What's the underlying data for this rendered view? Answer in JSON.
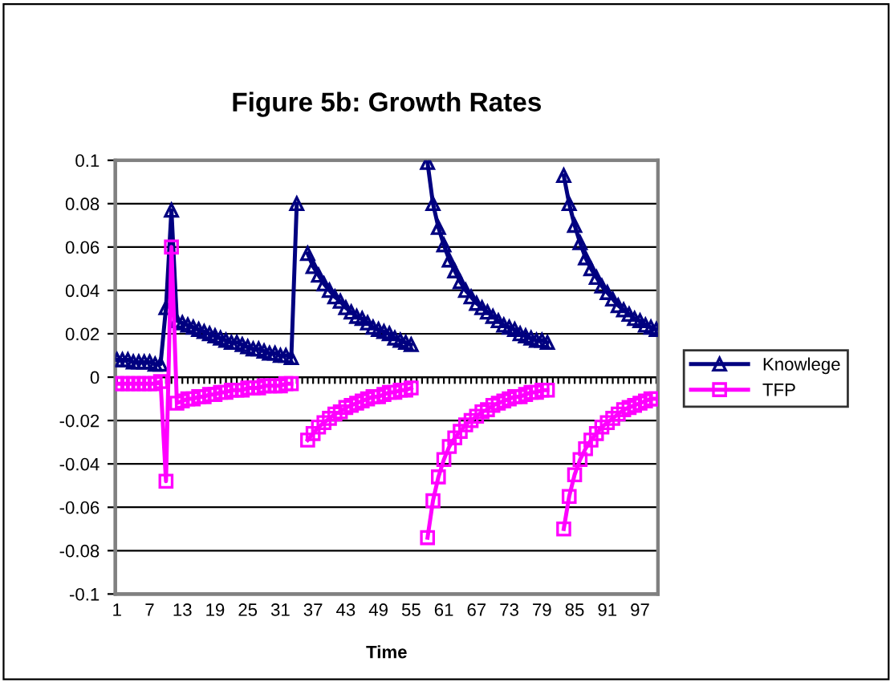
{
  "chart_data": {
    "type": "line",
    "title": "Figure 5b: Growth Rates",
    "xlabel": "Time",
    "categories": [
      "1",
      null,
      null,
      null,
      null,
      null,
      "7",
      null,
      null,
      null,
      null,
      null,
      "13",
      null,
      null,
      null,
      null,
      null,
      "19",
      null,
      null,
      null,
      null,
      null,
      "25",
      null,
      null,
      null,
      null,
      null,
      "31",
      null,
      null,
      null,
      null,
      null,
      "37",
      null,
      null,
      null,
      null,
      null,
      "43",
      null,
      null,
      null,
      null,
      null,
      "49",
      null,
      null,
      null,
      null,
      null,
      "55",
      null,
      null,
      null,
      null,
      null,
      "61",
      null,
      null,
      null,
      null,
      null,
      "67",
      null,
      null,
      null,
      null,
      null,
      "73",
      null,
      null,
      null,
      null,
      null,
      "79",
      null,
      null,
      null,
      null,
      null,
      "85",
      null,
      null,
      null,
      null,
      null,
      "91",
      null,
      null,
      null,
      null,
      null,
      "97",
      null,
      null,
      null
    ],
    "series": [
      {
        "name": "Knowlege",
        "color": "#000080",
        "marker": "triangle",
        "values": [
          0.008,
          0.008,
          0.008,
          0.007,
          0.007,
          0.007,
          0.007,
          0.006,
          0.006,
          0.032,
          0.077,
          0.026,
          0.025,
          0.024,
          0.023,
          0.022,
          0.021,
          0.02,
          0.019,
          0.018,
          0.017,
          0.016,
          0.016,
          0.015,
          0.014,
          0.013,
          0.013,
          0.012,
          0.011,
          0.011,
          0.01,
          0.01,
          0.009,
          0.08,
          null,
          0.057,
          0.051,
          0.047,
          0.043,
          0.04,
          0.037,
          0.035,
          0.032,
          0.03,
          0.028,
          0.027,
          0.025,
          0.023,
          0.022,
          0.021,
          0.02,
          0.018,
          0.017,
          0.016,
          0.015,
          null,
          null,
          0.099,
          0.08,
          0.069,
          0.061,
          0.054,
          0.049,
          0.044,
          0.04,
          0.037,
          0.034,
          0.032,
          0.03,
          0.028,
          0.026,
          0.024,
          0.023,
          0.022,
          0.02,
          0.019,
          0.018,
          0.017,
          0.017,
          0.016,
          null,
          null,
          0.093,
          0.08,
          0.07,
          0.062,
          0.055,
          0.05,
          0.046,
          0.042,
          0.039,
          0.036,
          0.033,
          0.031,
          0.029,
          0.027,
          0.026,
          0.024,
          0.023,
          0.022
        ]
      },
      {
        "name": "TFP",
        "color": "#ff00ff",
        "marker": "square",
        "values": [
          -0.003,
          -0.003,
          -0.003,
          -0.003,
          -0.003,
          -0.003,
          -0.003,
          -0.003,
          -0.002,
          -0.048,
          0.06,
          -0.012,
          -0.011,
          -0.01,
          -0.01,
          -0.009,
          -0.009,
          -0.008,
          -0.008,
          -0.007,
          -0.007,
          -0.006,
          -0.006,
          -0.006,
          -0.005,
          -0.005,
          -0.005,
          -0.004,
          -0.004,
          -0.004,
          -0.004,
          -0.003,
          -0.003,
          null,
          null,
          -0.029,
          -0.026,
          -0.023,
          -0.021,
          -0.019,
          -0.017,
          -0.016,
          -0.014,
          -0.013,
          -0.012,
          -0.011,
          -0.01,
          -0.009,
          -0.009,
          -0.008,
          -0.007,
          -0.007,
          -0.006,
          -0.006,
          -0.005,
          null,
          null,
          -0.074,
          -0.057,
          -0.046,
          -0.038,
          -0.032,
          -0.028,
          -0.025,
          -0.022,
          -0.02,
          -0.018,
          -0.016,
          -0.015,
          -0.013,
          -0.012,
          -0.011,
          -0.01,
          -0.009,
          -0.009,
          -0.008,
          -0.007,
          -0.007,
          -0.006,
          -0.006,
          null,
          null,
          -0.07,
          -0.055,
          -0.045,
          -0.038,
          -0.033,
          -0.029,
          -0.026,
          -0.023,
          -0.021,
          -0.019,
          -0.017,
          -0.015,
          -0.014,
          -0.013,
          -0.012,
          -0.011,
          -0.01,
          -0.01
        ]
      }
    ],
    "ylim": [
      -0.1,
      0.1
    ],
    "yticks": [
      -0.1,
      -0.08,
      -0.06,
      -0.04,
      -0.02,
      0,
      0.02,
      0.04,
      0.06,
      0.08,
      0.1
    ],
    "grid": "y",
    "legend": "right",
    "line_style": "solid"
  }
}
